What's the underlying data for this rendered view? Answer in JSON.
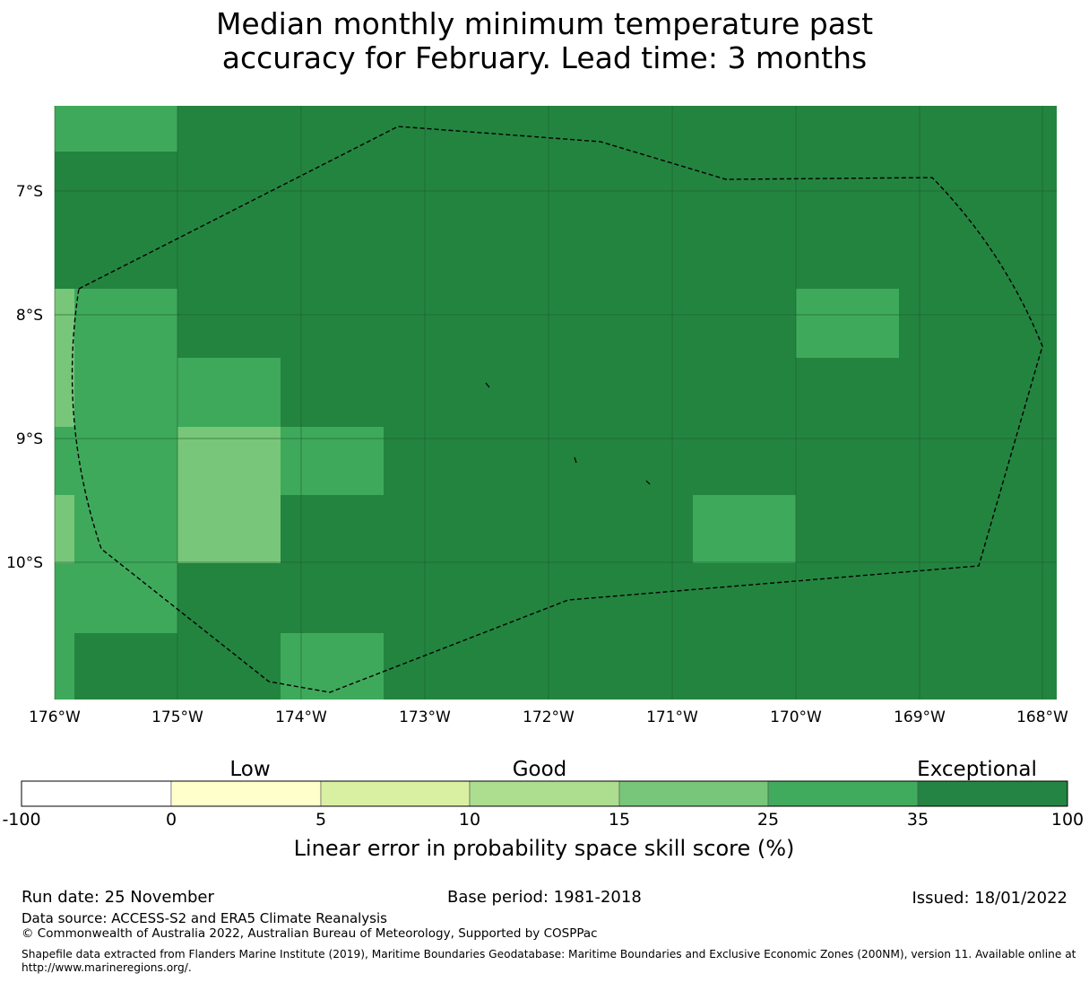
{
  "title": {
    "line1": "Median monthly minimum temperature past",
    "line2": "accuracy for February. Lead time: 3 months"
  },
  "map": {
    "lon_labels": [
      "176°W",
      "175°W",
      "174°W",
      "173°W",
      "172°W",
      "171°W",
      "170°W",
      "169°W",
      "168°W"
    ],
    "lat_labels": [
      "7°S",
      "8°S",
      "9°S",
      "10°S"
    ],
    "colors": {
      "exceptional_dark": "#23843f",
      "band_25_35": "#3fa95b",
      "band_15_25": "#78c679",
      "boundary": "#000000",
      "grid": "#1d5a2e"
    }
  },
  "legend": {
    "category_labels": [
      "Low",
      "Good",
      "Exceptional"
    ],
    "tick_labels": [
      "-100",
      "0",
      "5",
      "10",
      "15",
      "25",
      "35",
      "100"
    ],
    "colors": [
      "#ffffff",
      "#ffffcc",
      "#d9f0a3",
      "#addd8e",
      "#78c679",
      "#41ab5d",
      "#238443"
    ],
    "axis_label": "Linear error in probability space skill score (%)"
  },
  "footer": {
    "run_date": "Run date: 25 November",
    "base_period": "Base period: 1981-2018",
    "issued": "Issued: 18/01/2022",
    "data_source": "Data source: ACCESS-S2 and ERA5 Climate Reanalysis",
    "copyright": "© Commonwealth of Australia 2022, Australian Bureau of Meteorology, Supported by COSPPac",
    "shapefile_line1": "Shapefile data extracted from Flanders Marine Institute (2019), Maritime Boundaries Geodatabase: Maritime Boundaries and Exclusive Economic Zones (200NM), version 11. Available online at",
    "shapefile_line2": "http://www.marineregions.org/."
  }
}
